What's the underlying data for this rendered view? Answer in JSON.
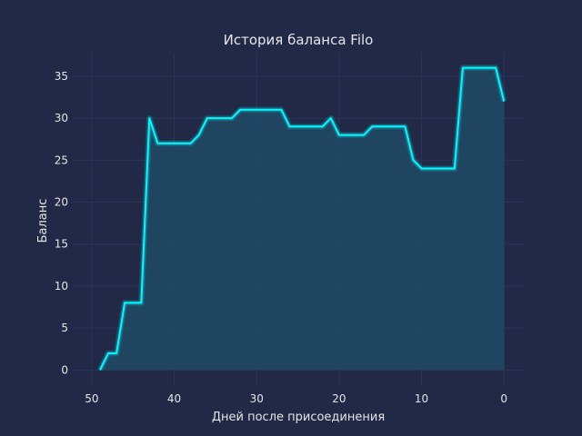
{
  "chart_data": {
    "type": "line",
    "title": "История баланса Filo",
    "xlabel": "Дней после присоединения",
    "ylabel": "Баланс",
    "x_inverted": true,
    "xlim": [
      52.3,
      -2.4
    ],
    "ylim": [
      -1.8,
      37.8
    ],
    "x_ticks": [
      50,
      40,
      30,
      20,
      10,
      0
    ],
    "y_ticks": [
      0,
      5,
      10,
      15,
      20,
      25,
      30,
      35
    ],
    "grid": true,
    "fill_under": true,
    "line_color": "#08F7FE",
    "fill_color": "#1E4A66",
    "background_color": "#212946",
    "grid_color": "#2A3459",
    "series": [
      {
        "x": [
          49,
          48,
          47,
          46,
          45,
          44,
          43,
          42,
          41,
          40,
          39,
          38,
          37,
          36,
          35,
          34,
          33,
          32,
          31,
          30,
          29,
          28,
          27,
          26,
          25,
          24,
          23,
          22,
          21,
          20,
          19,
          18,
          17,
          16,
          15,
          14,
          13,
          12,
          11,
          10,
          9,
          8,
          7,
          6,
          5,
          4,
          3,
          2,
          1,
          0
        ],
        "values": [
          0,
          2,
          2,
          8,
          8,
          8,
          30,
          27,
          27,
          27,
          27,
          27,
          28,
          30,
          30,
          30,
          30,
          31,
          31,
          31,
          31,
          31,
          31,
          29,
          29,
          29,
          29,
          29,
          30,
          28,
          28,
          28,
          28,
          29,
          29,
          29,
          29,
          29,
          25,
          24,
          24,
          24,
          24,
          24,
          36,
          36,
          36,
          36,
          36,
          32
        ]
      }
    ]
  }
}
